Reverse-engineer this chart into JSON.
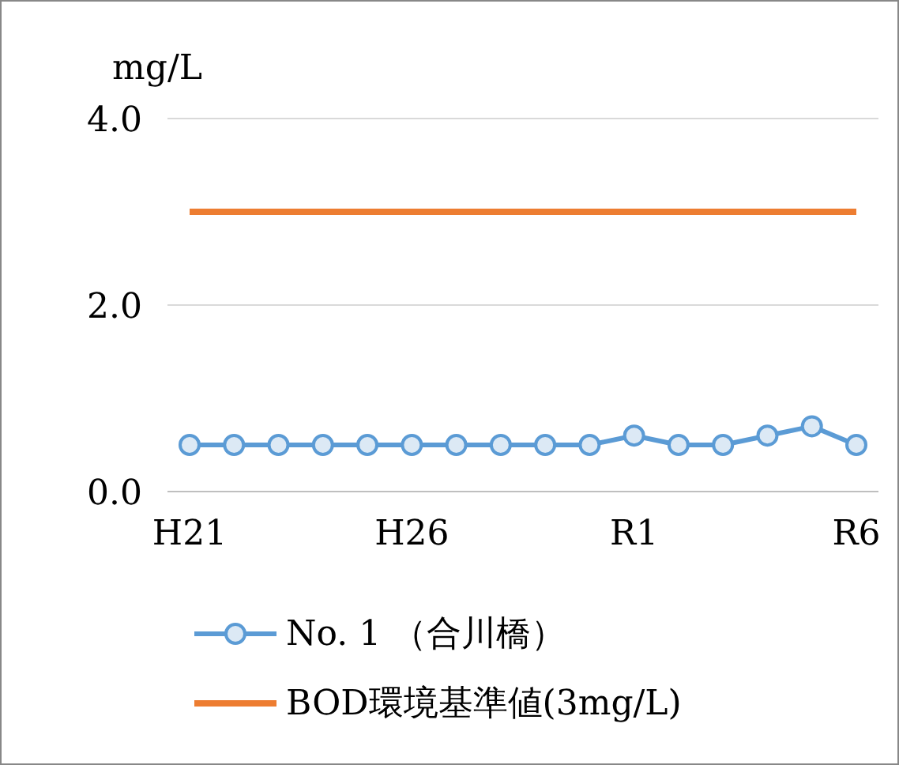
{
  "chart_data": {
    "type": "line",
    "ylabel": "mg/L",
    "categories": [
      "H21",
      null,
      null,
      null,
      null,
      "H26",
      null,
      null,
      null,
      null,
      "R1",
      null,
      null,
      null,
      null,
      "R6"
    ],
    "series": [
      {
        "name": "No. 1 （合川橋）",
        "color": "#5b9bd5",
        "marker": "circle",
        "values": [
          0.5,
          0.5,
          0.5,
          0.5,
          0.5,
          0.5,
          0.5,
          0.5,
          0.5,
          0.5,
          0.6,
          0.5,
          0.5,
          0.6,
          0.7,
          0.5
        ]
      },
      {
        "name": "BOD環境基準値(3mg/L)",
        "color": "#ed7d31",
        "marker": "none",
        "values": [
          3,
          3,
          3,
          3,
          3,
          3,
          3,
          3,
          3,
          3,
          3,
          3,
          3,
          3,
          3,
          3
        ]
      }
    ],
    "ylim": [
      0,
      4
    ],
    "yticks": [
      {
        "value": 0,
        "label": "0.0"
      },
      {
        "value": 2,
        "label": "2.0"
      },
      {
        "value": 4,
        "label": "4.0"
      }
    ],
    "grid": "y",
    "legend": "bottom"
  }
}
